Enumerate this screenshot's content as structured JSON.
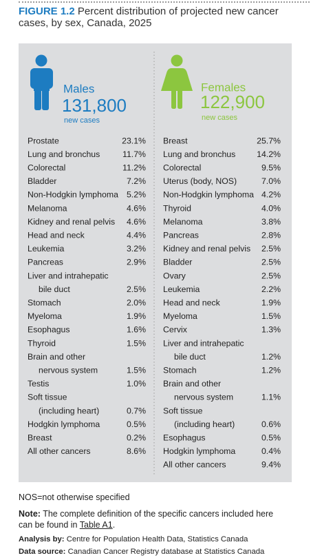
{
  "figure": {
    "label": "FIGURE 1.2",
    "title": "Percent distribution of projected new cancer cases, by sex, Canada, 2025"
  },
  "box": {
    "males": {
      "label": "Males",
      "count": "131,800",
      "unit": "new cases",
      "rows": [
        {
          "lines": [
            "Prostate"
          ],
          "value": "23.1%"
        },
        {
          "lines": [
            "Lung and bronchus"
          ],
          "value": "11.7%"
        },
        {
          "lines": [
            "Colorectal"
          ],
          "value": "11.2%"
        },
        {
          "lines": [
            "Bladder"
          ],
          "value": "7.2%"
        },
        {
          "lines": [
            "Non-Hodgkin lymphoma"
          ],
          "value": "5.2%"
        },
        {
          "lines": [
            "Melanoma"
          ],
          "value": "4.6%"
        },
        {
          "lines": [
            "Kidney and renal pelvis"
          ],
          "value": "4.6%"
        },
        {
          "lines": [
            "Head and neck"
          ],
          "value": "4.4%"
        },
        {
          "lines": [
            "Leukemia"
          ],
          "value": "3.2%"
        },
        {
          "lines": [
            "Pancreas"
          ],
          "value": "2.9%"
        },
        {
          "lines": [
            "Liver and intrahepatic",
            "bile duct"
          ],
          "value": "2.5%"
        },
        {
          "lines": [
            "Stomach"
          ],
          "value": "2.0%"
        },
        {
          "lines": [
            "Myeloma"
          ],
          "value": "1.9%"
        },
        {
          "lines": [
            "Esophagus"
          ],
          "value": "1.6%"
        },
        {
          "lines": [
            "Thyroid"
          ],
          "value": "1.5%"
        },
        {
          "lines": [
            "Brain and other",
            "nervous system"
          ],
          "value": "1.5%"
        },
        {
          "lines": [
            "Testis"
          ],
          "value": "1.0%"
        },
        {
          "lines": [
            "Soft tissue",
            "(including heart)"
          ],
          "value": "0.7%"
        },
        {
          "lines": [
            "Hodgkin lymphoma"
          ],
          "value": "0.5%"
        },
        {
          "lines": [
            "Breast"
          ],
          "value": "0.2%"
        },
        {
          "lines": [
            "All other cancers"
          ],
          "value": "8.6%"
        }
      ]
    },
    "females": {
      "label": "Females",
      "count": "122,900",
      "unit": "new cases",
      "rows": [
        {
          "lines": [
            "Breast"
          ],
          "value": "25.7%"
        },
        {
          "lines": [
            "Lung and bronchus"
          ],
          "value": "14.2%"
        },
        {
          "lines": [
            "Colorectal"
          ],
          "value": "9.5%"
        },
        {
          "lines": [
            "Uterus (body, NOS)"
          ],
          "value": "7.0%"
        },
        {
          "lines": [
            "Non-Hodgkin lymphoma"
          ],
          "value": "4.2%"
        },
        {
          "lines": [
            "Thyroid"
          ],
          "value": "4.0%"
        },
        {
          "lines": [
            "Melanoma"
          ],
          "value": "3.8%"
        },
        {
          "lines": [
            "Pancreas"
          ],
          "value": "2.8%"
        },
        {
          "lines": [
            "Kidney and renal pelvis"
          ],
          "value": "2.5%"
        },
        {
          "lines": [
            "Bladder"
          ],
          "value": "2.5%"
        },
        {
          "lines": [
            "Ovary"
          ],
          "value": "2.5%"
        },
        {
          "lines": [
            "Leukemia"
          ],
          "value": "2.2%"
        },
        {
          "lines": [
            "Head and neck"
          ],
          "value": "1.9%"
        },
        {
          "lines": [
            "Myeloma"
          ],
          "value": "1.5%"
        },
        {
          "lines": [
            "Cervix"
          ],
          "value": "1.3%"
        },
        {
          "lines": [
            "Liver and intrahepatic",
            "bile duct"
          ],
          "value": "1.2%"
        },
        {
          "lines": [
            "Stomach"
          ],
          "value": "1.2%"
        },
        {
          "lines": [
            "Brain and other",
            "nervous system"
          ],
          "value": "1.1%"
        },
        {
          "lines": [
            "Soft tissue",
            "(including heart)"
          ],
          "value": "0.6%"
        },
        {
          "lines": [
            "Esophagus"
          ],
          "value": "0.5%"
        },
        {
          "lines": [
            "Hodgkin lymphoma"
          ],
          "value": "0.4%"
        },
        {
          "lines": [
            "All other cancers"
          ],
          "value": "9.4%"
        }
      ]
    }
  },
  "footer": {
    "abbrev": "NOS=not otherwise specified",
    "note": {
      "label": "Note:",
      "text": "The complete definition of the specific cancers included here can be found in",
      "link": "Table A1",
      "end": "."
    },
    "analysis": {
      "label": "Analysis by:",
      "text": "Centre for Population Health Data, Statistics Canada"
    },
    "source": {
      "label": "Data source:",
      "text": "Canadian Cancer Registry database at Statistics Canada"
    }
  }
}
